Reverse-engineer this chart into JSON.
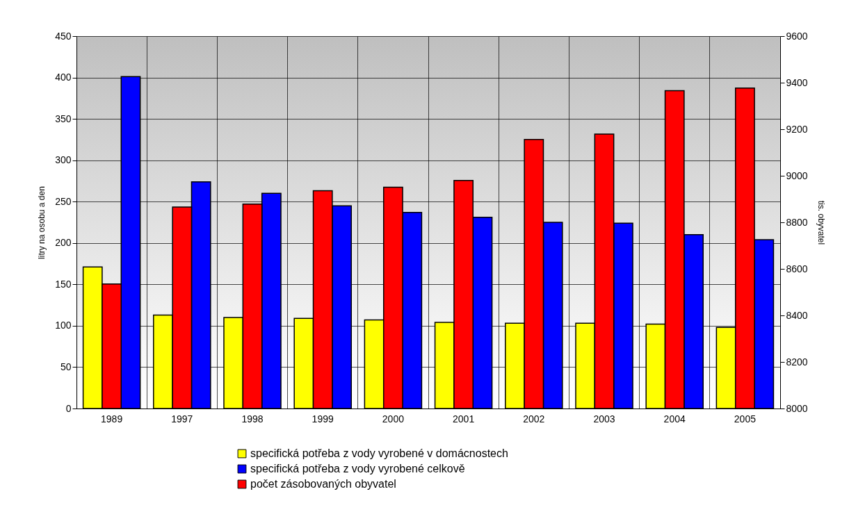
{
  "chart_data": {
    "type": "bar",
    "categories": [
      "1989",
      "1997",
      "1998",
      "1999",
      "2000",
      "2001",
      "2002",
      "2003",
      "2004",
      "2005"
    ],
    "series": [
      {
        "name": "specifická potřeba z vody vyrobené v domácnostech",
        "color": "#ffff00",
        "values": [
          171,
          113,
          110,
          109,
          107,
          104,
          103,
          103,
          102,
          98
        ]
      },
      {
        "name": "počet zásobovaných obyvatel",
        "color": "#ff0000",
        "axis": "y2",
        "values": [
          8535,
          8866,
          8878,
          8936,
          8951,
          8980,
          9156,
          9179,
          9366,
          9377
        ]
      },
      {
        "name": "specifická potřeba z vody vyrobené celkově",
        "color": "#0000ff",
        "values": [
          401,
          274,
          260,
          245,
          237,
          231,
          225,
          224,
          210,
          204
        ]
      }
    ],
    "ylabel": "litry na osobu a den",
    "y2label": "tis. obyvatel",
    "ylim": [
      0,
      450
    ],
    "yticks": [
      0,
      50,
      100,
      150,
      200,
      250,
      300,
      350,
      400,
      450
    ],
    "y2lim": [
      8000,
      9600
    ],
    "y2ticks": [
      8000,
      8200,
      8400,
      8600,
      8800,
      9000,
      9200,
      9400,
      9600
    ],
    "grid": true,
    "legend": "bottom"
  }
}
